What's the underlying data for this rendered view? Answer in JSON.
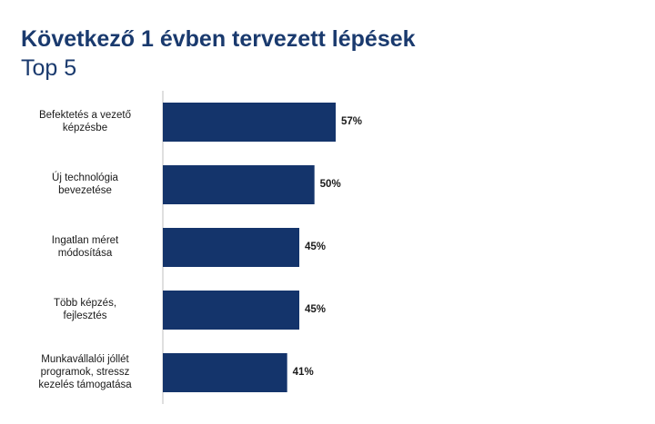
{
  "title": "Következő 1 évben tervezett lépések",
  "subtitle": "Top 5",
  "colors": {
    "bar": "#14346b",
    "title": "#1a3a6e",
    "axis": "#bfbfbf"
  },
  "chart_data": {
    "type": "bar",
    "orientation": "horizontal",
    "title": "Következő 1 évben tervezett lépések",
    "subtitle": "Top 5",
    "categories": [
      [
        "Befektetés a vezető",
        "képzésbe"
      ],
      [
        "Új technológia",
        "bevezetése"
      ],
      [
        "Ingatlan méret",
        "módosítása"
      ],
      [
        "Több képzés,",
        "fejlesztés"
      ],
      [
        "Munkavállalói jóllét",
        "programok, stressz",
        "kezelés támogatása"
      ]
    ],
    "values": [
      57,
      50,
      45,
      45,
      41
    ],
    "value_labels": [
      "57%",
      "50%",
      "45%",
      "45%",
      "41%"
    ],
    "unit": "%",
    "xlim": [
      0,
      100
    ],
    "grid": false,
    "legend": "none"
  }
}
